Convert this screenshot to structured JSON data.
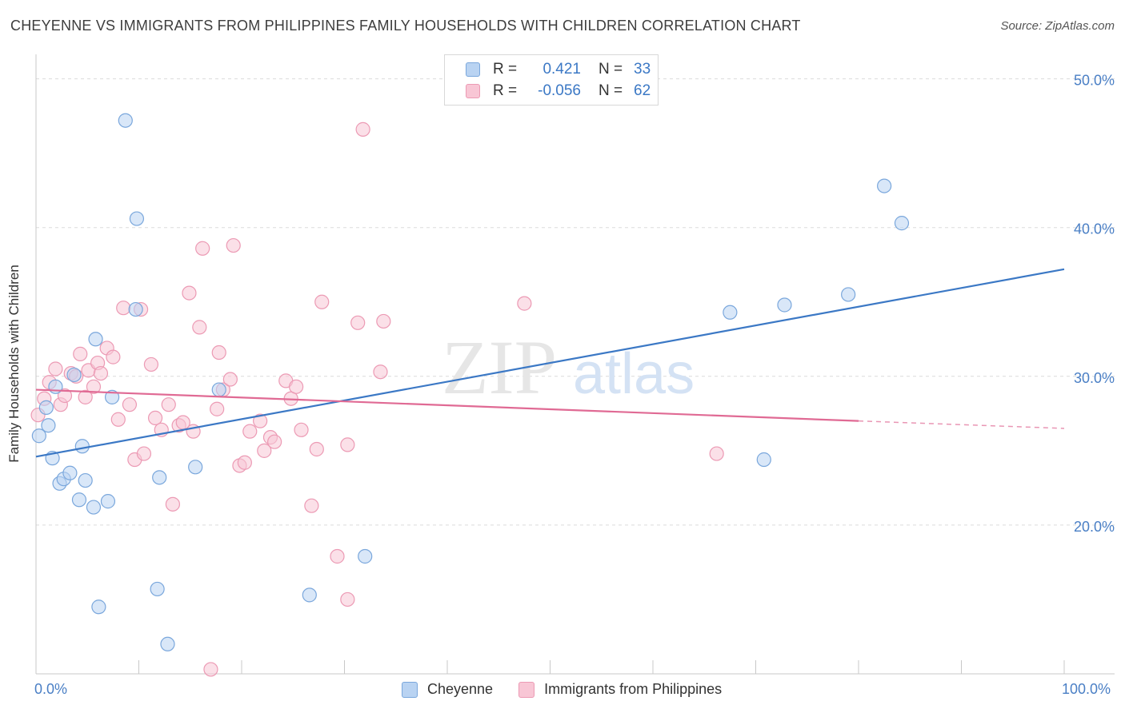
{
  "title": "CHEYENNE VS IMMIGRANTS FROM PHILIPPINES FAMILY HOUSEHOLDS WITH CHILDREN CORRELATION CHART",
  "source": "Source: ZipAtlas.com",
  "watermark": {
    "zip": "ZIP",
    "atlas": "atlas"
  },
  "legend": {
    "rows": [
      {
        "r_label": "R =",
        "r_value": "0.421",
        "n_label": "N =",
        "n_value": "33"
      },
      {
        "r_label": "R =",
        "r_value": "-0.056",
        "n_label": "N =",
        "n_value": "62"
      }
    ]
  },
  "bottom_legend": [
    "Cheyenne",
    "Immigrants from Philippines"
  ],
  "colors": {
    "cheyenne_fill": "#b9d3f2",
    "cheyenne_stroke": "#7aa7dc",
    "cheyenne_line": "#3b78c5",
    "phil_fill": "#f8c6d5",
    "phil_stroke": "#ec9ab4",
    "phil_line": "#e06a94",
    "grid": "#dcdcdc",
    "tick_text": "#4a7fc5"
  },
  "chart_data": {
    "type": "scatter",
    "ylabel": "Family Households with Children",
    "xlabel": "",
    "xlim": [
      0,
      100
    ],
    "ylim": [
      10,
      51
    ],
    "x_tick_labels": [
      "0.0%",
      "100.0%"
    ],
    "y_ticks": [
      20,
      30,
      40,
      50
    ],
    "y_tick_labels": [
      "20.0%",
      "30.0%",
      "40.0%",
      "50.0%"
    ],
    "series": [
      {
        "name": "Cheyenne",
        "points": [
          [
            0.3,
            26.0
          ],
          [
            1.0,
            27.9
          ],
          [
            1.2,
            26.7
          ],
          [
            1.6,
            24.5
          ],
          [
            1.9,
            29.3
          ],
          [
            2.3,
            22.8
          ],
          [
            2.7,
            23.1
          ],
          [
            3.3,
            23.5
          ],
          [
            3.7,
            30.1
          ],
          [
            4.2,
            21.7
          ],
          [
            4.5,
            25.3
          ],
          [
            4.8,
            23.0
          ],
          [
            5.6,
            21.2
          ],
          [
            5.8,
            32.5
          ],
          [
            7.0,
            21.6
          ],
          [
            7.4,
            28.6
          ],
          [
            8.7,
            47.2
          ],
          [
            9.7,
            34.5
          ],
          [
            9.8,
            40.6
          ],
          [
            12.0,
            23.2
          ],
          [
            11.8,
            15.7
          ],
          [
            12.8,
            12.0
          ],
          [
            6.1,
            14.5
          ],
          [
            15.5,
            23.9
          ],
          [
            17.8,
            29.1
          ],
          [
            26.6,
            15.3
          ],
          [
            32.0,
            17.9
          ],
          [
            67.5,
            34.3
          ],
          [
            72.8,
            34.8
          ],
          [
            79.0,
            35.5
          ],
          [
            82.5,
            42.8
          ],
          [
            84.2,
            40.3
          ],
          [
            70.8,
            24.4
          ]
        ],
        "trend": {
          "x0": 0,
          "y0": 24.6,
          "x1": 100,
          "y1": 37.2
        }
      },
      {
        "name": "Immigrants from Philippines",
        "points": [
          [
            0.2,
            27.4
          ],
          [
            0.8,
            28.5
          ],
          [
            1.3,
            29.6
          ],
          [
            1.9,
            30.5
          ],
          [
            2.4,
            28.1
          ],
          [
            2.8,
            28.7
          ],
          [
            3.4,
            30.2
          ],
          [
            3.9,
            30.0
          ],
          [
            4.3,
            31.5
          ],
          [
            4.8,
            28.6
          ],
          [
            5.1,
            30.4
          ],
          [
            5.6,
            29.3
          ],
          [
            6.0,
            30.9
          ],
          [
            6.3,
            30.2
          ],
          [
            6.9,
            31.9
          ],
          [
            7.5,
            31.3
          ],
          [
            8.0,
            27.1
          ],
          [
            8.5,
            34.6
          ],
          [
            9.1,
            28.1
          ],
          [
            9.6,
            24.4
          ],
          [
            10.2,
            34.5
          ],
          [
            10.5,
            24.8
          ],
          [
            11.2,
            30.8
          ],
          [
            11.6,
            27.2
          ],
          [
            12.2,
            26.4
          ],
          [
            12.9,
            28.1
          ],
          [
            13.3,
            21.4
          ],
          [
            13.9,
            26.7
          ],
          [
            14.3,
            26.9
          ],
          [
            14.9,
            35.6
          ],
          [
            15.3,
            26.3
          ],
          [
            15.9,
            33.3
          ],
          [
            16.2,
            38.6
          ],
          [
            17.6,
            27.8
          ],
          [
            17.8,
            31.6
          ],
          [
            18.2,
            29.1
          ],
          [
            18.9,
            29.8
          ],
          [
            19.2,
            38.8
          ],
          [
            19.8,
            24.0
          ],
          [
            20.3,
            24.2
          ],
          [
            20.8,
            26.3
          ],
          [
            21.8,
            27.0
          ],
          [
            22.2,
            25.0
          ],
          [
            22.8,
            25.9
          ],
          [
            23.2,
            25.6
          ],
          [
            24.3,
            29.7
          ],
          [
            24.8,
            28.5
          ],
          [
            25.3,
            29.3
          ],
          [
            25.8,
            26.4
          ],
          [
            26.8,
            21.3
          ],
          [
            27.3,
            25.1
          ],
          [
            27.8,
            35.0
          ],
          [
            29.3,
            17.9
          ],
          [
            30.3,
            25.4
          ],
          [
            30.3,
            15.0
          ],
          [
            31.3,
            33.6
          ],
          [
            31.8,
            46.6
          ],
          [
            17.0,
            10.3
          ],
          [
            33.5,
            30.3
          ],
          [
            33.8,
            33.7
          ],
          [
            47.5,
            34.9
          ],
          [
            66.2,
            24.8
          ]
        ],
        "trend": {
          "x0": 0,
          "y0": 29.1,
          "x1": 80,
          "y1": 27.0
        },
        "trend_dashed": {
          "x0": 80,
          "y0": 27.0,
          "x1": 100,
          "y1": 26.5
        }
      }
    ]
  }
}
